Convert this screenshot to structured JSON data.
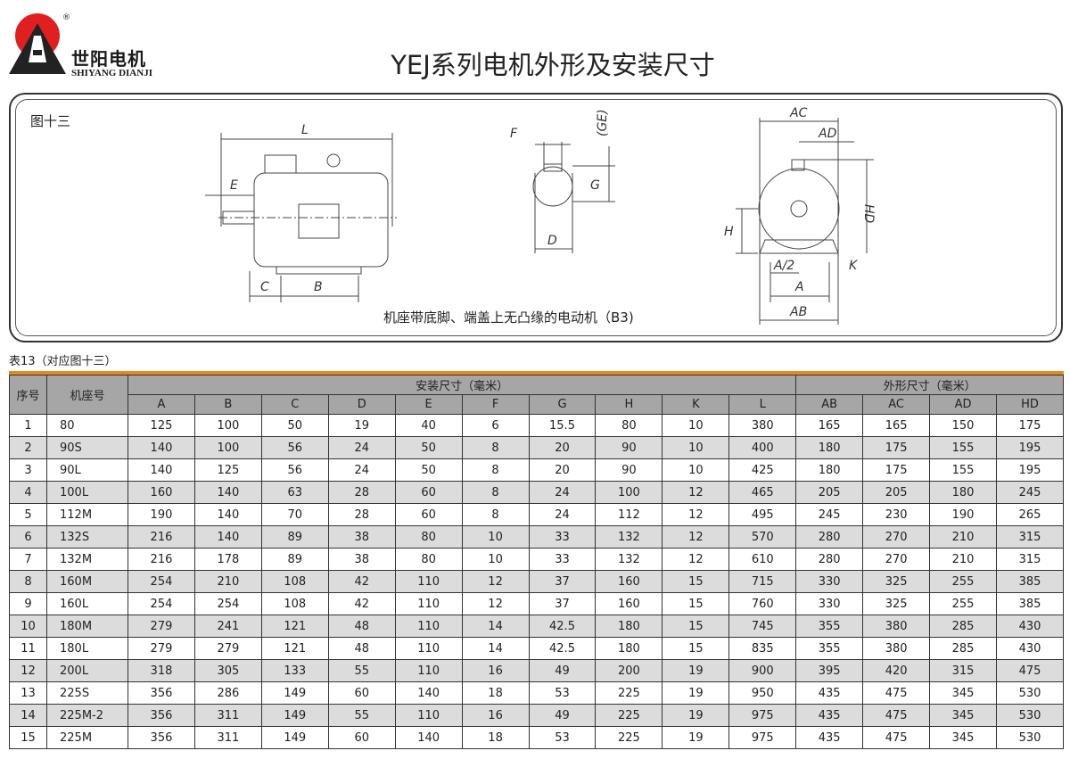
{
  "logo": {
    "cn": "世阳电机",
    "en": "SHIYANG DIANJI",
    "registered": "®",
    "colors": {
      "sun": "#e02020",
      "mark": "#222222"
    }
  },
  "title": "YEJ系列电机外形及安装尺寸",
  "figure": {
    "label": "图十三",
    "caption": "机座带底脚、端盖上无凸缘的电动机（B3)",
    "side_labels": {
      "L": "L",
      "E": "E",
      "C": "C",
      "B": "B"
    },
    "shaft_labels": {
      "F": "F",
      "GE": "(GE)",
      "G": "G",
      "D": "D"
    },
    "front_labels": {
      "AC": "AC",
      "AD": "AD",
      "HD": "HD",
      "H": "H",
      "A2": "A/2",
      "K": "K",
      "A": "A",
      "AB": "AB"
    }
  },
  "table": {
    "caption": "表13（对应图十三）",
    "accent": "#e58a1f",
    "col_no": "序号",
    "col_frame": "机座号",
    "group_install": "安装尺寸（毫米）",
    "group_outline": "外形尺寸（毫米）",
    "install_cols": [
      "A",
      "B",
      "C",
      "D",
      "E",
      "F",
      "G",
      "H",
      "K",
      "L"
    ],
    "outline_cols": [
      "AB",
      "AC",
      "AD",
      "HD"
    ],
    "rows": [
      [
        "1",
        "80",
        "125",
        "100",
        "50",
        "19",
        "40",
        "6",
        "15.5",
        "80",
        "10",
        "380",
        "165",
        "165",
        "150",
        "175"
      ],
      [
        "2",
        "90S",
        "140",
        "100",
        "56",
        "24",
        "50",
        "8",
        "20",
        "90",
        "10",
        "400",
        "180",
        "175",
        "155",
        "195"
      ],
      [
        "3",
        "90L",
        "140",
        "125",
        "56",
        "24",
        "50",
        "8",
        "20",
        "90",
        "10",
        "425",
        "180",
        "175",
        "155",
        "195"
      ],
      [
        "4",
        "100L",
        "160",
        "140",
        "63",
        "28",
        "60",
        "8",
        "24",
        "100",
        "12",
        "465",
        "205",
        "205",
        "180",
        "245"
      ],
      [
        "5",
        "112M",
        "190",
        "140",
        "70",
        "28",
        "60",
        "8",
        "24",
        "112",
        "12",
        "495",
        "245",
        "230",
        "190",
        "265"
      ],
      [
        "6",
        "132S",
        "216",
        "140",
        "89",
        "38",
        "80",
        "10",
        "33",
        "132",
        "12",
        "570",
        "280",
        "270",
        "210",
        "315"
      ],
      [
        "7",
        "132M",
        "216",
        "178",
        "89",
        "38",
        "80",
        "10",
        "33",
        "132",
        "12",
        "610",
        "280",
        "270",
        "210",
        "315"
      ],
      [
        "8",
        "160M",
        "254",
        "210",
        "108",
        "42",
        "110",
        "12",
        "37",
        "160",
        "15",
        "715",
        "330",
        "325",
        "255",
        "385"
      ],
      [
        "9",
        "160L",
        "254",
        "254",
        "108",
        "42",
        "110",
        "12",
        "37",
        "160",
        "15",
        "760",
        "330",
        "325",
        "255",
        "385"
      ],
      [
        "10",
        "180M",
        "279",
        "241",
        "121",
        "48",
        "110",
        "14",
        "42.5",
        "180",
        "15",
        "745",
        "355",
        "380",
        "285",
        "430"
      ],
      [
        "11",
        "180L",
        "279",
        "279",
        "121",
        "48",
        "110",
        "14",
        "42.5",
        "180",
        "15",
        "835",
        "355",
        "380",
        "285",
        "430"
      ],
      [
        "12",
        "200L",
        "318",
        "305",
        "133",
        "55",
        "110",
        "16",
        "49",
        "200",
        "19",
        "900",
        "395",
        "420",
        "315",
        "475"
      ],
      [
        "13",
        "225S",
        "356",
        "286",
        "149",
        "60",
        "140",
        "18",
        "53",
        "225",
        "19",
        "950",
        "435",
        "475",
        "345",
        "530"
      ],
      [
        "14",
        "225M-2",
        "356",
        "311",
        "149",
        "55",
        "110",
        "16",
        "49",
        "225",
        "19",
        "975",
        "435",
        "475",
        "345",
        "530"
      ],
      [
        "15",
        "225M",
        "356",
        "311",
        "149",
        "60",
        "140",
        "18",
        "53",
        "225",
        "19",
        "975",
        "435",
        "475",
        "345",
        "530"
      ]
    ]
  }
}
